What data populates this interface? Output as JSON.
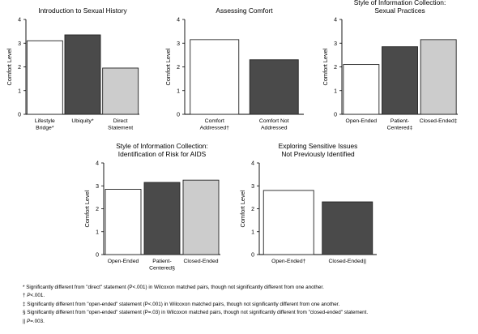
{
  "chart_data": [
    {
      "type": "bar",
      "title": [
        "Introduction to Sexual History"
      ],
      "ylabel": "Comfort Level",
      "ylim": [
        0,
        4
      ],
      "yticks": [
        0,
        1,
        2,
        3,
        4
      ],
      "categories": [
        [
          "Lifestyle",
          "Bridge*"
        ],
        [
          "Ubiquity*"
        ],
        [
          "Direct",
          "Statement"
        ]
      ],
      "values": [
        3.1,
        3.35,
        1.95
      ],
      "colors": [
        "#ffffff",
        "#4a4a4a",
        "#cccccc"
      ]
    },
    {
      "type": "bar",
      "title": [
        "Assessing Comfort"
      ],
      "ylabel": "Comfort Level",
      "ylim": [
        0,
        4
      ],
      "yticks": [
        0,
        1,
        2,
        3,
        4
      ],
      "categories": [
        [
          "Comfort",
          "Addressed†"
        ],
        [
          "Comfort Not",
          "Addressed"
        ]
      ],
      "values": [
        3.15,
        2.3
      ],
      "colors": [
        "#ffffff",
        "#4a4a4a"
      ]
    },
    {
      "type": "bar",
      "title": [
        "Style of Information Collection:",
        "Sexual Practices"
      ],
      "ylabel": "Comfort Level",
      "ylim": [
        0,
        4
      ],
      "yticks": [
        0,
        1,
        2,
        3,
        4
      ],
      "categories": [
        [
          "Open-Ended"
        ],
        [
          "Patient-",
          "Centered‡"
        ],
        [
          "Closed-Ended‡"
        ]
      ],
      "values": [
        2.1,
        2.85,
        3.15
      ],
      "colors": [
        "#ffffff",
        "#4a4a4a",
        "#cccccc"
      ]
    },
    {
      "type": "bar",
      "title": [
        "Style of Information Collection:",
        "Identification of Risk for AIDS"
      ],
      "ylabel": "Comfort Level",
      "ylim": [
        0,
        4
      ],
      "yticks": [
        0,
        1,
        2,
        3,
        4
      ],
      "categories": [
        [
          "Open-Ended"
        ],
        [
          "Patient-",
          "Centered§"
        ],
        [
          "Closed-Ended"
        ]
      ],
      "values": [
        2.85,
        3.15,
        3.25
      ],
      "colors": [
        "#ffffff",
        "#4a4a4a",
        "#cccccc"
      ]
    },
    {
      "type": "bar",
      "title": [
        "Exploring Sensitive Issues",
        "Not Previously Identified"
      ],
      "ylabel": "Comfort Level",
      "ylim": [
        0,
        4
      ],
      "yticks": [
        0,
        1,
        2,
        3,
        4
      ],
      "categories": [
        [
          "Open-Ended†"
        ],
        [
          "Closed-Ended||"
        ]
      ],
      "values": [
        2.8,
        2.3
      ],
      "colors": [
        "#ffffff",
        "#4a4a4a"
      ]
    }
  ],
  "footnotes": {
    "f1": "* Significantly different from \"direct\" statement (P<.001) in Wilcoxon matched pairs, though not significantly different from one another.",
    "f2_mark": "† ",
    "f2_p": "P",
    "f2_rest": "<.001.",
    "f3": "‡ Significantly different from \"open-ended\" statement (P<.001) in Wilcoxon matched pairs, though not significantly different from one another.",
    "f4": "§ Significantly different from \"open-ended\" statement (P=.03) in Wilcoxon matched pairs, though not significantly different from \"closed-ended\" statement.",
    "f5_mark": "|| ",
    "f5_p": "P",
    "f5_rest": "=.003."
  }
}
